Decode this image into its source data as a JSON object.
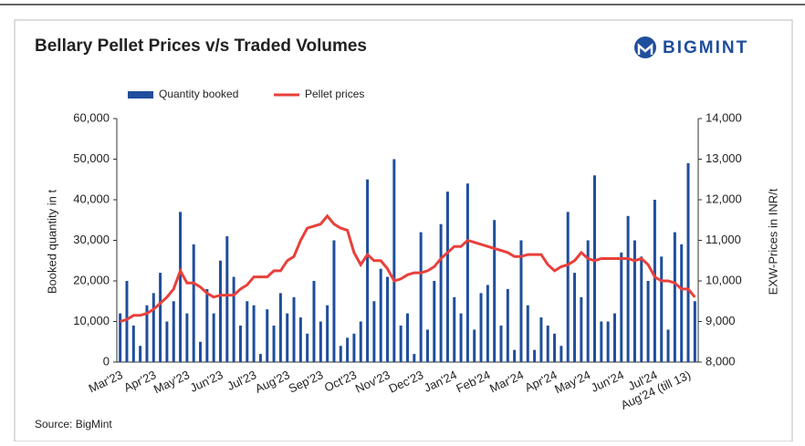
{
  "chart_data": {
    "type": "bar_line",
    "title": "Bellary Pellet Prices v/s Traded Volumes",
    "brand": "BIGMINT",
    "source": "Source: BigMint",
    "y_label": "Booked quantity in t",
    "y2_label": "EXW-Prices in INR/t",
    "categories": [
      "Mar'23",
      null,
      null,
      null,
      null,
      "Apr'23",
      null,
      null,
      null,
      null,
      "May'23",
      null,
      null,
      null,
      null,
      "Jun'23",
      null,
      null,
      null,
      null,
      "Jul'23",
      null,
      null,
      null,
      null,
      "Aug'23",
      null,
      null,
      null,
      null,
      "Sep'23",
      null,
      null,
      null,
      null,
      "Oct'23",
      null,
      null,
      null,
      null,
      "Nov'23",
      null,
      null,
      null,
      null,
      "Dec'23",
      null,
      null,
      null,
      null,
      "Jan'24",
      null,
      null,
      null,
      null,
      "Feb'24",
      null,
      null,
      null,
      null,
      "Mar'24",
      null,
      null,
      null,
      null,
      "Apr'24",
      null,
      null,
      null,
      null,
      "May'24",
      null,
      null,
      null,
      null,
      "Jun'24",
      null,
      null,
      null,
      null,
      "Jul'24",
      null,
      null,
      null,
      null,
      "Aug'24 (till 13)",
      null
    ],
    "series": [
      {
        "name": "Quantity booked",
        "color": "#1f4e9c",
        "axis": "y",
        "values": [
          12000,
          20000,
          9000,
          4000,
          14000,
          17000,
          22000,
          10000,
          15000,
          37000,
          12000,
          29000,
          5000,
          18000,
          12000,
          25000,
          31000,
          21000,
          9000,
          15000,
          14000,
          2000,
          13000,
          9000,
          17000,
          12000,
          16000,
          11000,
          7000,
          20000,
          10000,
          14000,
          30000,
          4000,
          6000,
          7000,
          10000,
          45000,
          15000,
          23000,
          21000,
          50000,
          9000,
          12000,
          2000,
          32000,
          8000,
          20000,
          34000,
          42000,
          16000,
          12000,
          44000,
          8000,
          17000,
          19000,
          35000,
          9000,
          18000,
          3000,
          30000,
          14000,
          3000,
          11000,
          9000,
          7000,
          4000,
          37000,
          22000,
          16000,
          30000,
          46000,
          10000,
          10000,
          12000,
          27000,
          36000,
          30000,
          26000,
          20000,
          40000,
          26000,
          8000,
          32000,
          29000,
          49000,
          15000
        ]
      },
      {
        "name": "Pellet prices",
        "color": "#e8403b",
        "axis": "y2",
        "values": [
          9000,
          9050,
          9150,
          9150,
          9200,
          9300,
          9450,
          9600,
          9800,
          10250,
          9950,
          9950,
          9850,
          9700,
          9600,
          9650,
          9650,
          9650,
          9800,
          9900,
          10100,
          10100,
          10100,
          10250,
          10250,
          10500,
          10600,
          11000,
          11300,
          11350,
          11400,
          11600,
          11400,
          11300,
          11250,
          10700,
          10400,
          10650,
          10500,
          10500,
          10300,
          10000,
          10050,
          10150,
          10200,
          10200,
          10250,
          10350,
          10550,
          10700,
          10850,
          10850,
          11000,
          10950,
          10900,
          10850,
          10800,
          10750,
          10700,
          10600,
          10600,
          10650,
          10650,
          10650,
          10400,
          10250,
          10350,
          10400,
          10500,
          10700,
          10550,
          10500,
          10550,
          10550,
          10550,
          10550,
          10550,
          10500,
          10550,
          10400,
          10100,
          10000,
          10000,
          9950,
          9800,
          9800,
          9600
        ]
      }
    ],
    "ylim": [
      0,
      60000
    ],
    "yticks": [
      0,
      {
        "value": 10000,
        "label": "10,000"
      },
      {
        "value": 20000,
        "label": "20,000"
      },
      {
        "value": 30000,
        "label": "30,000"
      },
      {
        "value": 40000,
        "label": "40,000"
      },
      {
        "value": 50000,
        "label": "50,000"
      },
      {
        "value": 60000,
        "label": "60,000"
      }
    ],
    "y2lim": [
      8000,
      14000
    ],
    "y2ticks": [
      {
        "value": 8000,
        "label": "8,000"
      },
      {
        "value": 9000,
        "label": "9,000"
      },
      {
        "value": 10000,
        "label": "10,000"
      },
      {
        "value": 11000,
        "label": "11,000"
      },
      {
        "value": 12000,
        "label": "12,000"
      },
      {
        "value": 13000,
        "label": "13,000"
      },
      {
        "value": 14000,
        "label": "14,000"
      }
    ]
  }
}
